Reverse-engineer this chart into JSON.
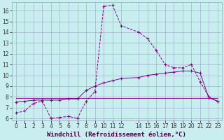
{
  "xlabel": "Windchill (Refroidissement éolien,°C)",
  "background_color": "#c8eef0",
  "grid_color": "#a0a0cc",
  "line_color": "#880088",
  "xlim": [
    -0.5,
    23.5
  ],
  "ylim": [
    5.8,
    16.8
  ],
  "xticks": [
    0,
    1,
    2,
    3,
    4,
    5,
    6,
    7,
    8,
    9,
    10,
    11,
    12,
    14,
    15,
    16,
    17,
    18,
    19,
    20,
    21,
    22,
    23
  ],
  "yticks": [
    6,
    7,
    8,
    9,
    10,
    11,
    12,
    13,
    14,
    15,
    16
  ],
  "line1_x": [
    0,
    1,
    2,
    3,
    4,
    5,
    6,
    7,
    8,
    9,
    10,
    11,
    12,
    14,
    15,
    16,
    17,
    18,
    19,
    20,
    21,
    22,
    23
  ],
  "line1_y": [
    6.5,
    6.7,
    7.4,
    7.6,
    6.0,
    6.1,
    6.2,
    6.0,
    7.6,
    8.5,
    16.4,
    16.5,
    14.6,
    14.0,
    13.4,
    12.3,
    11.0,
    10.7,
    10.7,
    11.0,
    9.4,
    8.0,
    7.6
  ],
  "line2_x": [
    0,
    2,
    3,
    4,
    5,
    6,
    7,
    8,
    9,
    10,
    11,
    12,
    14,
    15,
    16,
    17,
    18,
    19,
    20,
    21,
    22,
    23
  ],
  "line2_y": [
    7.9,
    7.9,
    7.9,
    7.9,
    7.9,
    7.9,
    7.9,
    7.9,
    7.9,
    7.9,
    7.9,
    7.9,
    7.9,
    7.9,
    7.9,
    7.9,
    7.9,
    7.9,
    7.9,
    7.9,
    7.9,
    7.9
  ],
  "line3_x": [
    0,
    1,
    2,
    3,
    4,
    5,
    6,
    7,
    8,
    9,
    10,
    11,
    12,
    14,
    15,
    16,
    17,
    18,
    19,
    20,
    21,
    22,
    23
  ],
  "line3_y": [
    7.5,
    7.6,
    7.7,
    7.7,
    7.7,
    7.7,
    7.8,
    7.8,
    8.6,
    9.0,
    9.3,
    9.5,
    9.7,
    9.8,
    10.0,
    10.1,
    10.2,
    10.3,
    10.4,
    10.4,
    10.2,
    7.9,
    7.6
  ],
  "tick_fontsize": 5.5,
  "xlabel_fontsize": 6.5
}
